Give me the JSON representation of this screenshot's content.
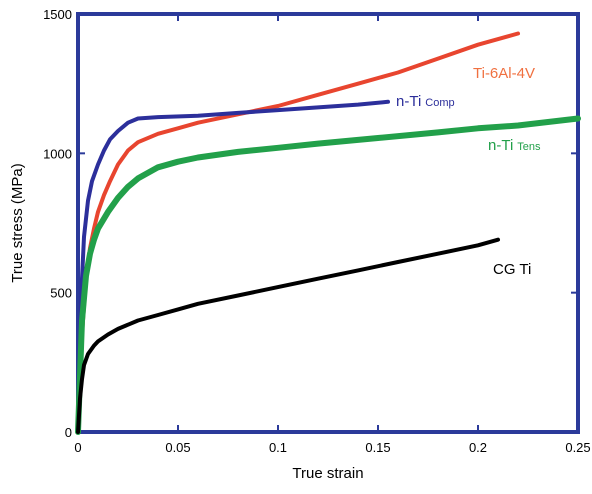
{
  "chart_data": {
    "type": "line",
    "xlabel": "True strain",
    "ylabel": "True stress (MPa)",
    "xlim": [
      0,
      0.25
    ],
    "ylim": [
      0,
      1500
    ],
    "x_ticks": [
      0,
      0.05,
      0.1,
      0.15,
      0.2,
      0.25
    ],
    "y_ticks": [
      0,
      500,
      1000,
      1500
    ],
    "x_tick_labels": [
      "0",
      "0.05",
      "0.1",
      "0.15",
      "0.2",
      "0.25"
    ],
    "y_tick_labels": [
      "0",
      "500",
      "1000",
      "1500"
    ],
    "grid": false,
    "frame_color": "#2b3a9a",
    "series": [
      {
        "name": "Ti-6Al-4V",
        "label_main": "Ti-6Al-4V",
        "label_sub": "",
        "color": "#e8452f",
        "label_color": "#f07040",
        "x": [
          0,
          0.002,
          0.004,
          0.006,
          0.008,
          0.01,
          0.013,
          0.016,
          0.02,
          0.025,
          0.03,
          0.04,
          0.05,
          0.06,
          0.08,
          0.1,
          0.12,
          0.14,
          0.16,
          0.18,
          0.2,
          0.215,
          0.22
        ],
        "y": [
          0,
          350,
          550,
          660,
          730,
          790,
          850,
          900,
          960,
          1010,
          1040,
          1070,
          1090,
          1110,
          1140,
          1170,
          1210,
          1250,
          1290,
          1340,
          1390,
          1420,
          1430
        ]
      },
      {
        "name": "n-Ti Comp",
        "label_main": "n-Ti",
        "label_sub": "Comp",
        "color": "#2c2f9b",
        "label_color": "#2c2f9b",
        "x": [
          0,
          0.001,
          0.002,
          0.003,
          0.005,
          0.007,
          0.01,
          0.013,
          0.016,
          0.02,
          0.025,
          0.03,
          0.04,
          0.06,
          0.08,
          0.1,
          0.12,
          0.14,
          0.155
        ],
        "y": [
          0,
          300,
          550,
          700,
          830,
          900,
          960,
          1010,
          1050,
          1080,
          1110,
          1125,
          1130,
          1135,
          1145,
          1155,
          1165,
          1175,
          1185
        ]
      },
      {
        "name": "n-Ti Tens",
        "label_main": "n-Ti",
        "label_sub": "Tens",
        "color": "#22a04a",
        "label_color": "#22a04a",
        "x": [
          0,
          0.002,
          0.004,
          0.006,
          0.008,
          0.01,
          0.015,
          0.02,
          0.025,
          0.03,
          0.04,
          0.05,
          0.06,
          0.08,
          0.1,
          0.12,
          0.15,
          0.18,
          0.2,
          0.22,
          0.25
        ],
        "y": [
          0,
          400,
          560,
          640,
          690,
          730,
          790,
          840,
          880,
          910,
          950,
          970,
          985,
          1005,
          1020,
          1035,
          1055,
          1075,
          1090,
          1100,
          1125
        ]
      },
      {
        "name": "CG Ti",
        "label_main": "CG Ti",
        "label_sub": "",
        "color": "#000000",
        "label_color": "#000000",
        "x": [
          0,
          0.001,
          0.002,
          0.003,
          0.005,
          0.008,
          0.01,
          0.015,
          0.02,
          0.03,
          0.04,
          0.05,
          0.06,
          0.08,
          0.1,
          0.12,
          0.14,
          0.16,
          0.18,
          0.2,
          0.21
        ],
        "y": [
          0,
          120,
          190,
          240,
          280,
          310,
          325,
          350,
          370,
          400,
          420,
          440,
          460,
          490,
          520,
          550,
          580,
          610,
          640,
          670,
          690
        ]
      }
    ]
  }
}
